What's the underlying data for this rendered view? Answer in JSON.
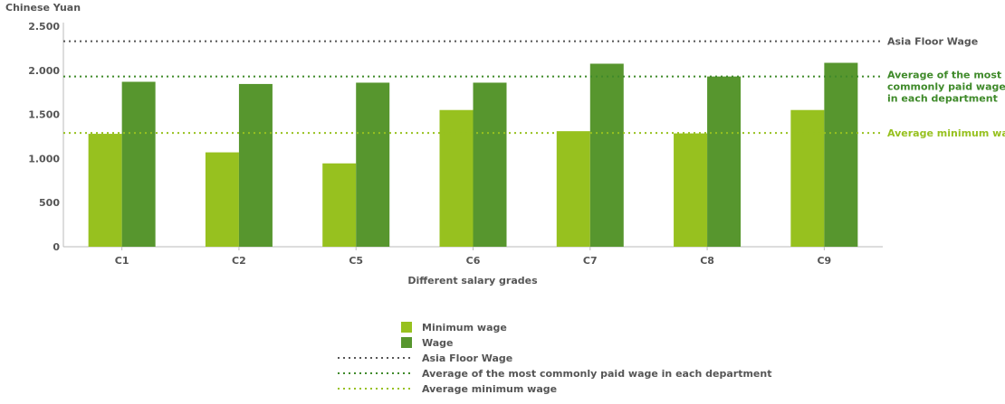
{
  "chart_data": {
    "type": "bar",
    "ylabel": "Chinese Yuan",
    "xlabel": "Different salary grades",
    "ylim": [
      0,
      2500
    ],
    "yticks": [
      0,
      500,
      1000,
      1500,
      2000,
      2500
    ],
    "ytick_labels": [
      "0",
      "500",
      "1.000",
      "1.500",
      "2.000",
      "2.500"
    ],
    "grid": false,
    "categories": [
      "C1",
      "C2",
      "C5",
      "C6",
      "C7",
      "C8",
      "C9"
    ],
    "series": [
      {
        "name": "Minimum wage",
        "color": "#97c11f",
        "values": [
          1280,
          1070,
          945,
          1550,
          1310,
          1285,
          1550
        ]
      },
      {
        "name": "Wage",
        "color": "#57962e",
        "values": [
          1870,
          1845,
          1860,
          1860,
          2075,
          1930,
          2085
        ]
      }
    ],
    "reference_lines": [
      {
        "name": "Asia Floor Wage",
        "label": [
          "Asia Floor Wage"
        ],
        "value": 2330,
        "color": "#555555"
      },
      {
        "name": "Average of the most commonly paid wage in each department",
        "label": [
          "Average of the most",
          "commonly paid wage",
          "in each department"
        ],
        "value": 1930,
        "color": "#3f8a2a"
      },
      {
        "name": "Average minimum wage",
        "label": [
          "Average minimum wage"
        ],
        "value": 1290,
        "color": "#97c11f"
      }
    ],
    "legend_position": "bottom"
  }
}
